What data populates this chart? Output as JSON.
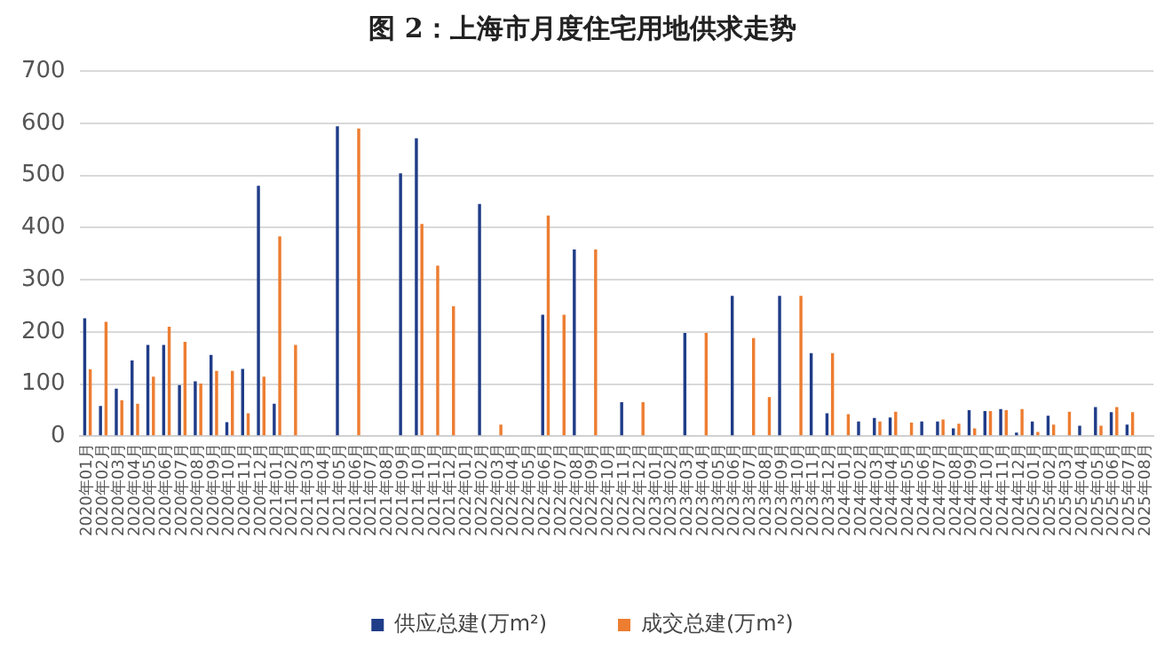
{
  "chart_data": {
    "type": "bar",
    "title": "图 2：上海市月度住宅用地供求走势",
    "categories": [
      "2020年01月",
      "2020年02月",
      "2020年03月",
      "2020年04月",
      "2020年05月",
      "2020年06月",
      "2020年07月",
      "2020年08月",
      "2020年09月",
      "2020年10月",
      "2020年11月",
      "2020年12月",
      "2021年01月",
      "2021年02月",
      "2021年03月",
      "2021年04月",
      "2021年05月",
      "2021年06月",
      "2021年07月",
      "2021年08月",
      "2021年09月",
      "2021年10月",
      "2021年11月",
      "2021年12月",
      "2022年01月",
      "2022年02月",
      "2022年03月",
      "2022年04月",
      "2022年05月",
      "2022年06月",
      "2022年07月",
      "2022年08月",
      "2022年09月",
      "2022年10月",
      "2022年11月",
      "2022年12月",
      "2023年01月",
      "2023年02月",
      "2023年03月",
      "2023年04月",
      "2023年05月",
      "2023年06月",
      "2023年07月",
      "2023年08月",
      "2023年09月",
      "2023年10月",
      "2023年11月",
      "2023年12月",
      "2024年01月",
      "2024年02月",
      "2024年03月",
      "2024年04月",
      "2024年05月",
      "2024年06月",
      "2024年07月",
      "2024年08月",
      "2024年09月",
      "2024年10月",
      "2024年11月",
      "2024年12月",
      "2025年01月",
      "2025年02月",
      "2025年03月",
      "2025年04月",
      "2025年05月",
      "2025年06月",
      "2025年07月",
      "2025年08月"
    ],
    "series": [
      {
        "name": "供应总建(万m²)",
        "color": "#1f3c88",
        "values": [
          226,
          58,
          91,
          145,
          175,
          175,
          98,
          105,
          156,
          27,
          129,
          480,
          62,
          null,
          null,
          null,
          594,
          null,
          null,
          null,
          504,
          571,
          null,
          null,
          null,
          445,
          null,
          null,
          null,
          233,
          null,
          358,
          null,
          null,
          65,
          null,
          null,
          null,
          198,
          null,
          null,
          269,
          null,
          null,
          269,
          null,
          159,
          44,
          null,
          28,
          35,
          36,
          null,
          28,
          28,
          15,
          50,
          48,
          52,
          7,
          28,
          39,
          null,
          20,
          56,
          46,
          22,
          null
        ]
      },
      {
        "name": "成交总建(万m²)",
        "color": "#ed7d31",
        "values": [
          128,
          219,
          69,
          62,
          114,
          210,
          181,
          101,
          125,
          125,
          44,
          114,
          383,
          175,
          null,
          null,
          null,
          590,
          null,
          null,
          null,
          407,
          327,
          249,
          null,
          null,
          22,
          null,
          null,
          423,
          233,
          null,
          358,
          null,
          null,
          65,
          null,
          null,
          null,
          198,
          null,
          null,
          188,
          75,
          null,
          269,
          null,
          159,
          42,
          null,
          28,
          47,
          26,
          null,
          32,
          24,
          15,
          48,
          50,
          52,
          8,
          22,
          47,
          null,
          20,
          56,
          46,
          null
        ]
      }
    ],
    "ylim": [
      0,
      700
    ],
    "yticks": [
      0,
      100,
      200,
      300,
      400,
      500,
      600,
      700
    ],
    "grid": "y",
    "legend": "bottom"
  }
}
